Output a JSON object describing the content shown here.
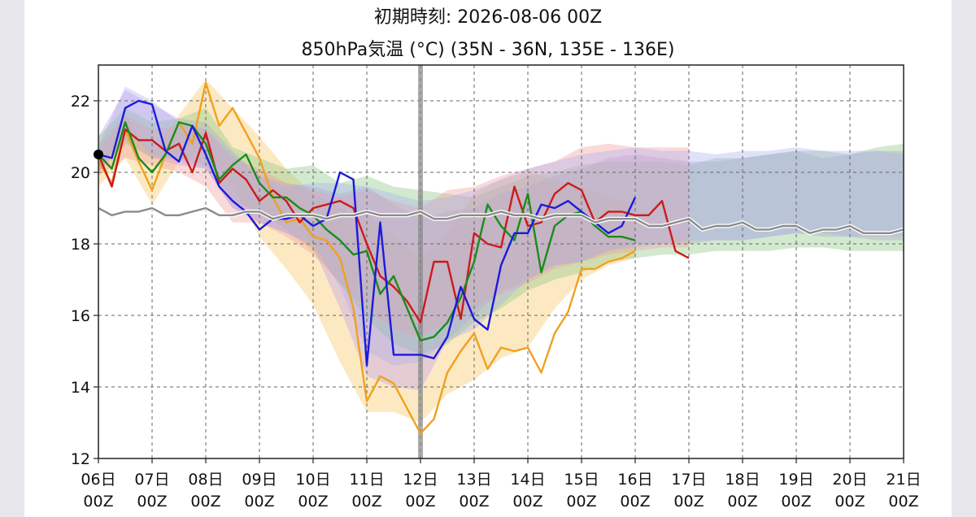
{
  "chart_data": {
    "type": "line",
    "title": "初期時刻: 2026-08-06 00Z",
    "subtitle": "850hPa気温 (°C)  (35N - 36N,  135E - 136E)",
    "ylim": [
      12,
      23
    ],
    "y_ticks": [
      12,
      14,
      16,
      18,
      20,
      22
    ],
    "x_range_days": [
      6,
      21
    ],
    "x_ticks": [
      {
        "day": 6,
        "label1": "06日",
        "label2": "00Z"
      },
      {
        "day": 7,
        "label1": "07日",
        "label2": "00Z"
      },
      {
        "day": 8,
        "label1": "08日",
        "label2": "00Z"
      },
      {
        "day": 9,
        "label1": "09日",
        "label2": "00Z"
      },
      {
        "day": 10,
        "label1": "10日",
        "label2": "00Z"
      },
      {
        "day": 11,
        "label1": "11日",
        "label2": "00Z"
      },
      {
        "day": 12,
        "label1": "12日",
        "label2": "00Z"
      },
      {
        "day": 13,
        "label1": "13日",
        "label2": "00Z"
      },
      {
        "day": 14,
        "label1": "14日",
        "label2": "00Z"
      },
      {
        "day": 15,
        "label1": "15日",
        "label2": "00Z"
      },
      {
        "day": 16,
        "label1": "16日",
        "label2": "00Z"
      },
      {
        "day": 17,
        "label1": "17日",
        "label2": "00Z"
      },
      {
        "day": 18,
        "label1": "18日",
        "label2": "00Z"
      },
      {
        "day": 19,
        "label1": "19日",
        "label2": "00Z"
      },
      {
        "day": 20,
        "label1": "20日",
        "label2": "00Z"
      },
      {
        "day": 21,
        "label1": "21日",
        "label2": "00Z"
      }
    ],
    "grid": true,
    "current_marker_day": 12,
    "initial_point": {
      "x": 6,
      "y": 20.5
    },
    "bands": [
      {
        "color": "#f7c866",
        "opacity": 0.4,
        "x": [
          6,
          6.5,
          7,
          7.5,
          8,
          8.5,
          9,
          9.5,
          10,
          10.5,
          11,
          11.5,
          12,
          12.5,
          13,
          13.5,
          14,
          14.5,
          15,
          15.5,
          16
        ],
        "upper": [
          20.8,
          21.6,
          20.5,
          21.6,
          22.6,
          21.8,
          21,
          20.1,
          19.4,
          19,
          18.8,
          18.2,
          17.6,
          18.3,
          19.4,
          19.8,
          20,
          19.8,
          19.6,
          19.3,
          19.1
        ],
        "lower": [
          19.6,
          20.4,
          19.1,
          20.3,
          20.6,
          19.6,
          18.2,
          17.3,
          16.3,
          14.7,
          13.3,
          13.3,
          13,
          13.8,
          14.2,
          14.8,
          15.1,
          16.2,
          17,
          17.4,
          17.6
        ]
      },
      {
        "color": "#c9a8e6",
        "opacity": 0.45,
        "x": [
          6,
          6.5,
          7,
          7.5,
          8,
          8.5,
          9,
          9.5,
          10,
          10.5,
          11,
          11.5,
          12,
          12.5,
          13,
          13.5,
          14,
          14.5,
          15,
          15.5,
          16,
          16.5,
          17,
          17.5,
          18,
          18.5,
          19,
          19.5,
          20,
          20.5,
          21
        ],
        "upper": [
          21,
          22.3,
          21.9,
          21.5,
          21.4,
          20.6,
          19.9,
          19.7,
          19.6,
          19.4,
          19.6,
          19.1,
          18.7,
          18.9,
          19,
          19.4,
          19.6,
          19.9,
          20.1,
          20.4,
          20.5,
          20.4,
          20.3,
          20.3,
          20.4,
          20.5,
          20.6,
          20.4,
          20.5,
          20.6,
          20.6
        ],
        "lower": [
          20,
          20.9,
          20.4,
          20.2,
          20.1,
          19,
          18.6,
          18.3,
          17.9,
          16.2,
          14.3,
          14,
          13.9,
          15.3,
          16,
          16.7,
          17,
          17.4,
          17.5,
          17.8,
          18,
          18,
          18,
          18.1,
          18.1,
          18.2,
          18.3,
          18.2,
          18.2,
          18.1,
          18.1
        ]
      },
      {
        "color": "#8fc98a",
        "opacity": 0.4,
        "x": [
          6,
          6.5,
          7,
          7.5,
          8,
          8.5,
          9,
          9.5,
          10,
          10.5,
          11,
          11.5,
          12,
          12.5,
          13,
          13.5,
          14,
          14.5,
          15,
          15.5,
          16,
          16.5,
          17,
          17.5,
          18,
          18.5,
          19,
          19.5,
          20,
          20.5,
          21
        ],
        "upper": [
          21,
          21.8,
          21.4,
          21.5,
          21.8,
          20.7,
          20.4,
          20.1,
          20.2,
          19.7,
          19.9,
          19.6,
          19.5,
          19.4,
          19.3,
          19.6,
          19.9,
          20,
          20.2,
          20.3,
          20.3,
          20.3,
          20.2,
          20.4,
          20.4,
          20.5,
          20.6,
          20.6,
          20.5,
          20.7,
          20.8
        ],
        "lower": [
          20,
          20.8,
          20.4,
          20.4,
          20.2,
          19.2,
          18.9,
          18.4,
          17.8,
          16.9,
          15.9,
          15.2,
          14.9,
          15.2,
          15.8,
          16.2,
          16.7,
          17,
          17.2,
          17.5,
          17.6,
          17.7,
          17.7,
          17.8,
          17.8,
          17.8,
          17.9,
          17.9,
          17.8,
          17.8,
          17.8
        ]
      },
      {
        "color": "#f3a0a0",
        "opacity": 0.4,
        "x": [
          6,
          6.5,
          7,
          7.5,
          8,
          8.5,
          9,
          9.5,
          10,
          10.5,
          11,
          11.5,
          12,
          12.5,
          13,
          13.5,
          14,
          14.5,
          15,
          15.5,
          16,
          16.5,
          17
        ],
        "upper": [
          20.6,
          21.6,
          21.2,
          21.3,
          21.2,
          20.4,
          20.1,
          19.7,
          19.5,
          19.3,
          19.5,
          19.2,
          19,
          19.5,
          19.6,
          19.9,
          20.1,
          20.3,
          20.7,
          20.8,
          20.7,
          20.7,
          20.7
        ],
        "lower": [
          19.9,
          20.4,
          20.2,
          20,
          19.6,
          18.6,
          18.6,
          18.2,
          17.7,
          16.9,
          16.2,
          15.6,
          15.4,
          15.8,
          16.2,
          16.6,
          16.9,
          17.3,
          17.5,
          17.7,
          17.8,
          17.9,
          17.9
        ]
      },
      {
        "color": "#a7abf2",
        "opacity": 0.35,
        "x": [
          6,
          6.5,
          7,
          7.5,
          8,
          8.5,
          9,
          9.5,
          10,
          10.5,
          11,
          11.5,
          12,
          12.5,
          13,
          13.5,
          14,
          14.5,
          15,
          15.5,
          16,
          16.5,
          17,
          17.5,
          18,
          18.5,
          19,
          19.5,
          20,
          20.5,
          21
        ],
        "upper": [
          20.7,
          22.4,
          22,
          21.4,
          21.2,
          20.5,
          19.9,
          19.6,
          19.7,
          19.7,
          19.6,
          19.4,
          19.2,
          19.3,
          19.5,
          19.8,
          20.1,
          20.3,
          20.5,
          20.6,
          20.7,
          20.6,
          20.6,
          20.5,
          20.6,
          20.6,
          20.7,
          20.6,
          20.6,
          20.6,
          20.5
        ],
        "lower": [
          20,
          21.2,
          20.5,
          20.3,
          20.1,
          19,
          18.6,
          18.3,
          18,
          16.8,
          15,
          14.6,
          14.7,
          15.3,
          15.6,
          16.3,
          17,
          17.4,
          17.5,
          17.8,
          17.9,
          18,
          18.1,
          18.1,
          18.1,
          18.2,
          18.3,
          18.3,
          18.2,
          18.2,
          18.2
        ]
      }
    ],
    "series": [
      {
        "color": "#f0a020",
        "x": [
          6,
          6.25,
          6.5,
          6.75,
          7,
          7.25,
          7.5,
          7.75,
          8,
          8.25,
          8.5,
          8.75,
          9,
          9.25,
          9.5,
          9.75,
          10,
          10.25,
          10.5,
          10.75,
          11,
          11.25,
          11.5,
          11.75,
          12,
          12.25,
          12.5,
          12.75,
          13,
          13.25,
          13.5,
          13.75,
          14,
          14.25,
          14.5,
          14.75,
          15,
          15.25,
          15.5,
          15.75,
          16
        ],
        "values": [
          20.3,
          19.7,
          21.2,
          20.3,
          19.5,
          20.5,
          21.4,
          20.8,
          22.5,
          21.3,
          21.8,
          21.1,
          20.4,
          19.3,
          18.6,
          18.7,
          18.2,
          18.1,
          17.6,
          16.2,
          13.6,
          14.3,
          14.1,
          13.4,
          12.7,
          13.1,
          14.4,
          15,
          15.5,
          14.5,
          15.1,
          15.0,
          15.1,
          14.4,
          15.5,
          16.1,
          17.3,
          17.3,
          17.5,
          17.6,
          17.8
        ]
      },
      {
        "color": "#cc1a1a",
        "x": [
          6,
          6.25,
          6.5,
          6.75,
          7,
          7.25,
          7.5,
          7.75,
          8,
          8.25,
          8.5,
          8.75,
          9,
          9.25,
          9.5,
          9.75,
          10,
          10.25,
          10.5,
          10.75,
          11,
          11.25,
          11.5,
          11.75,
          12,
          12.25,
          12.5,
          12.75,
          13,
          13.25,
          13.5,
          13.75,
          14,
          14.25,
          14.5,
          14.75,
          15,
          15.25,
          15.5,
          15.75,
          16,
          16.25,
          16.5,
          16.75,
          17
        ],
        "values": [
          20.5,
          19.6,
          21.2,
          20.9,
          20.9,
          20.6,
          20.8,
          20,
          21.1,
          19.7,
          20.1,
          19.8,
          19.2,
          19.5,
          19.2,
          18.6,
          19,
          19.1,
          19.2,
          19,
          18,
          17.1,
          16.8,
          16.4,
          15.8,
          17.5,
          17.5,
          15.9,
          18.3,
          18,
          17.9,
          19.6,
          18.5,
          18.6,
          19.4,
          19.7,
          19.5,
          18.6,
          18.9,
          18.9,
          18.8,
          18.8,
          19.2,
          17.8,
          17.6
        ]
      },
      {
        "color": "#1a8c1a",
        "x": [
          6,
          6.25,
          6.5,
          6.75,
          7,
          7.25,
          7.5,
          7.75,
          8,
          8.25,
          8.5,
          8.75,
          9,
          9.25,
          9.5,
          9.75,
          10,
          10.25,
          10.5,
          10.75,
          11,
          11.25,
          11.5,
          11.75,
          12,
          12.25,
          12.5,
          12.75,
          13,
          13.25,
          13.5,
          13.75,
          14,
          14.25,
          14.5,
          14.75,
          15,
          15.25,
          15.5,
          15.75,
          16
        ],
        "values": [
          20.5,
          20.1,
          21.4,
          20.4,
          20,
          20.5,
          21.4,
          21.3,
          20.8,
          19.8,
          20.2,
          20.5,
          19.7,
          19.3,
          19.3,
          19,
          18.8,
          18.4,
          18.1,
          17.7,
          17.8,
          16.6,
          17.1,
          16.2,
          15.3,
          15.4,
          15.8,
          16.5,
          17.5,
          19.1,
          18.5,
          18.1,
          19.4,
          17.2,
          18.5,
          18.8,
          18.9,
          18.5,
          18.2,
          18.2,
          18.1
        ]
      },
      {
        "color": "#1a1add",
        "x": [
          6,
          6.25,
          6.5,
          6.75,
          7,
          7.25,
          7.5,
          7.75,
          8,
          8.25,
          8.5,
          8.75,
          9,
          9.25,
          9.5,
          9.75,
          10,
          10.25,
          10.5,
          10.75,
          11,
          11.25,
          11.5,
          11.75,
          12,
          12.25,
          12.5,
          12.75,
          13,
          13.25,
          13.5,
          13.75,
          14,
          14.25,
          14.5,
          14.75,
          15,
          15.25,
          15.5,
          15.75,
          16
        ],
        "values": [
          20.5,
          20.4,
          21.8,
          22,
          21.9,
          20.6,
          20.3,
          21.3,
          20.5,
          19.6,
          19.2,
          18.9,
          18.4,
          18.7,
          18.7,
          18.8,
          18.5,
          18.7,
          20,
          19.8,
          14.6,
          18.6,
          14.9,
          14.9,
          14.9,
          14.8,
          15.4,
          16.8,
          15.9,
          15.6,
          17.4,
          18.3,
          18.3,
          19.1,
          19,
          19.2,
          18.9,
          18.6,
          18.3,
          18.5,
          19.3
        ]
      },
      {
        "color": "#8a8a8a",
        "x": [
          6,
          6.25,
          6.5,
          6.75,
          7,
          7.25,
          7.5,
          7.75,
          8,
          8.25,
          8.5,
          8.75,
          9,
          9.25,
          9.5,
          9.75,
          10,
          10.25,
          10.5,
          10.75,
          11,
          11.25,
          11.5,
          11.75,
          12,
          12.25,
          12.5,
          12.75,
          13,
          13.25,
          13.5,
          13.75,
          14,
          14.25,
          14.5,
          14.75,
          15,
          15.25,
          15.5,
          15.75,
          16,
          16.25,
          16.5,
          16.75,
          17,
          17.25,
          17.5,
          17.75,
          18,
          18.25,
          18.5,
          18.75,
          19,
          19.25,
          19.5,
          19.75,
          20,
          20.25,
          20.5,
          20.75,
          21
        ],
        "values": [
          19,
          18.8,
          18.9,
          18.9,
          19,
          18.8,
          18.8,
          18.9,
          19,
          18.8,
          18.8,
          18.9,
          18.9,
          18.7,
          18.8,
          18.8,
          18.8,
          18.7,
          18.8,
          18.8,
          18.9,
          18.8,
          18.8,
          18.8,
          18.9,
          18.7,
          18.7,
          18.8,
          18.8,
          18.8,
          18.9,
          18.8,
          18.8,
          18.7,
          18.8,
          18.8,
          18.8,
          18.6,
          18.7,
          18.7,
          18.7,
          18.5,
          18.5,
          18.6,
          18.7,
          18.4,
          18.5,
          18.5,
          18.6,
          18.4,
          18.4,
          18.5,
          18.5,
          18.3,
          18.4,
          18.4,
          18.5,
          18.3,
          18.3,
          18.3,
          18.4
        ]
      }
    ]
  }
}
